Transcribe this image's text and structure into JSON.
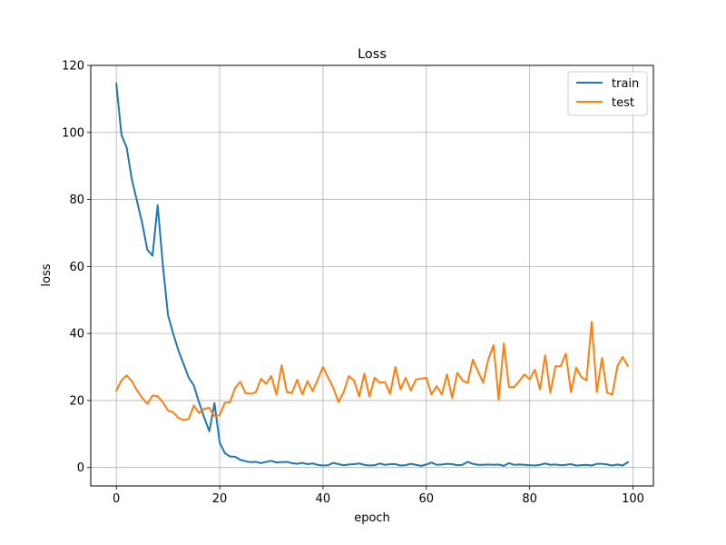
{
  "chart_data": {
    "type": "line",
    "title": "Loss",
    "xlabel": "epoch",
    "ylabel": "loss",
    "xlim": [
      -4.95,
      103.95
    ],
    "ylim": [
      -5.5,
      120
    ],
    "xticks": [
      0,
      20,
      40,
      60,
      80,
      100
    ],
    "yticks": [
      0,
      20,
      40,
      60,
      80,
      100,
      120
    ],
    "grid": true,
    "legend_position": "top-right",
    "series": [
      {
        "name": "train",
        "color": "#1f77b4",
        "x": [
          0,
          1,
          2,
          3,
          4,
          5,
          6,
          7,
          8,
          9,
          10,
          11,
          12,
          13,
          14,
          15,
          16,
          17,
          18,
          19,
          20,
          21,
          22,
          23,
          24,
          25,
          26,
          27,
          28,
          29,
          30,
          31,
          32,
          33,
          34,
          35,
          36,
          37,
          38,
          39,
          40,
          41,
          42,
          43,
          44,
          45,
          46,
          47,
          48,
          49,
          50,
          51,
          52,
          53,
          54,
          55,
          56,
          57,
          58,
          59,
          60,
          61,
          62,
          63,
          64,
          65,
          66,
          67,
          68,
          69,
          70,
          71,
          72,
          73,
          74,
          75,
          76,
          77,
          78,
          79,
          80,
          81,
          82,
          83,
          84,
          85,
          86,
          87,
          88,
          89,
          90,
          91,
          92,
          93,
          94,
          95,
          96,
          97,
          98,
          99
        ],
        "values": [
          114.5,
          99.2,
          95.5,
          86.0,
          79.5,
          73.0,
          65.0,
          63.2,
          78.3,
          60.5,
          45.5,
          40.0,
          35.0,
          31.0,
          26.8,
          24.5,
          19.5,
          15.0,
          10.8,
          19.2,
          7.5,
          4.3,
          3.3,
          3.2,
          2.3,
          1.9,
          1.6,
          1.7,
          1.3,
          1.7,
          2.0,
          1.5,
          1.6,
          1.7,
          1.3,
          1.1,
          1.4,
          1.0,
          1.2,
          0.8,
          0.6,
          0.7,
          1.4,
          1.0,
          0.7,
          0.9,
          1.0,
          1.2,
          0.8,
          0.6,
          0.7,
          1.2,
          0.8,
          1.0,
          1.0,
          0.6,
          0.7,
          1.1,
          0.8,
          0.5,
          0.9,
          1.5,
          0.8,
          0.9,
          1.1,
          1.0,
          0.7,
          0.8,
          1.7,
          1.1,
          0.8,
          0.8,
          0.9,
          0.8,
          0.9,
          0.5,
          1.3,
          0.8,
          0.9,
          0.8,
          0.7,
          0.6,
          0.8,
          1.2,
          0.8,
          0.9,
          0.7,
          0.8,
          1.0,
          0.6,
          0.7,
          0.8,
          0.6,
          1.1,
          1.1,
          0.9,
          0.6,
          0.9,
          0.6,
          1.6
        ]
      },
      {
        "name": "test",
        "color": "#ff7f0e",
        "x": [
          0,
          1,
          2,
          3,
          4,
          5,
          6,
          7,
          8,
          9,
          10,
          11,
          12,
          13,
          14,
          15,
          16,
          17,
          18,
          19,
          20,
          21,
          22,
          23,
          24,
          25,
          26,
          27,
          28,
          29,
          30,
          31,
          32,
          33,
          34,
          35,
          36,
          37,
          38,
          39,
          40,
          41,
          42,
          43,
          44,
          45,
          46,
          47,
          48,
          49,
          50,
          51,
          52,
          53,
          54,
          55,
          56,
          57,
          58,
          59,
          60,
          61,
          62,
          63,
          64,
          65,
          66,
          67,
          68,
          69,
          70,
          71,
          72,
          73,
          74,
          75,
          76,
          77,
          78,
          79,
          80,
          81,
          82,
          83,
          84,
          85,
          86,
          87,
          88,
          89,
          90,
          91,
          92,
          93,
          94,
          95,
          96,
          97,
          98,
          99
        ],
        "values": [
          23.0,
          26.0,
          27.5,
          25.8,
          23.0,
          20.8,
          19.0,
          21.5,
          21.3,
          19.5,
          17.0,
          16.5,
          14.8,
          14.2,
          14.5,
          18.5,
          16.3,
          17.5,
          17.8,
          15.3,
          15.6,
          19.3,
          19.5,
          23.8,
          25.6,
          22.2,
          22.0,
          22.5,
          26.5,
          25.0,
          27.3,
          21.7,
          30.5,
          22.5,
          22.3,
          26.2,
          21.8,
          25.8,
          22.8,
          26.3,
          30.0,
          26.8,
          23.8,
          19.5,
          22.5,
          27.3,
          26.0,
          21.2,
          28.0,
          21.2,
          26.8,
          25.3,
          25.5,
          22.0,
          30.0,
          23.3,
          26.8,
          23.0,
          26.3,
          26.5,
          26.8,
          21.8,
          24.3,
          21.8,
          27.8,
          20.8,
          28.3,
          26.0,
          25.2,
          32.2,
          28.7,
          25.3,
          32.3,
          36.5,
          20.3,
          37.0,
          24.0,
          24.0,
          25.8,
          27.8,
          26.3,
          29.2,
          23.3,
          33.5,
          22.3,
          30.2,
          30.2,
          34.0,
          22.5,
          29.8,
          27.0,
          26.0,
          43.5,
          22.5,
          32.7,
          22.3,
          21.8,
          30.3,
          33.0,
          30.3
        ]
      }
    ]
  }
}
